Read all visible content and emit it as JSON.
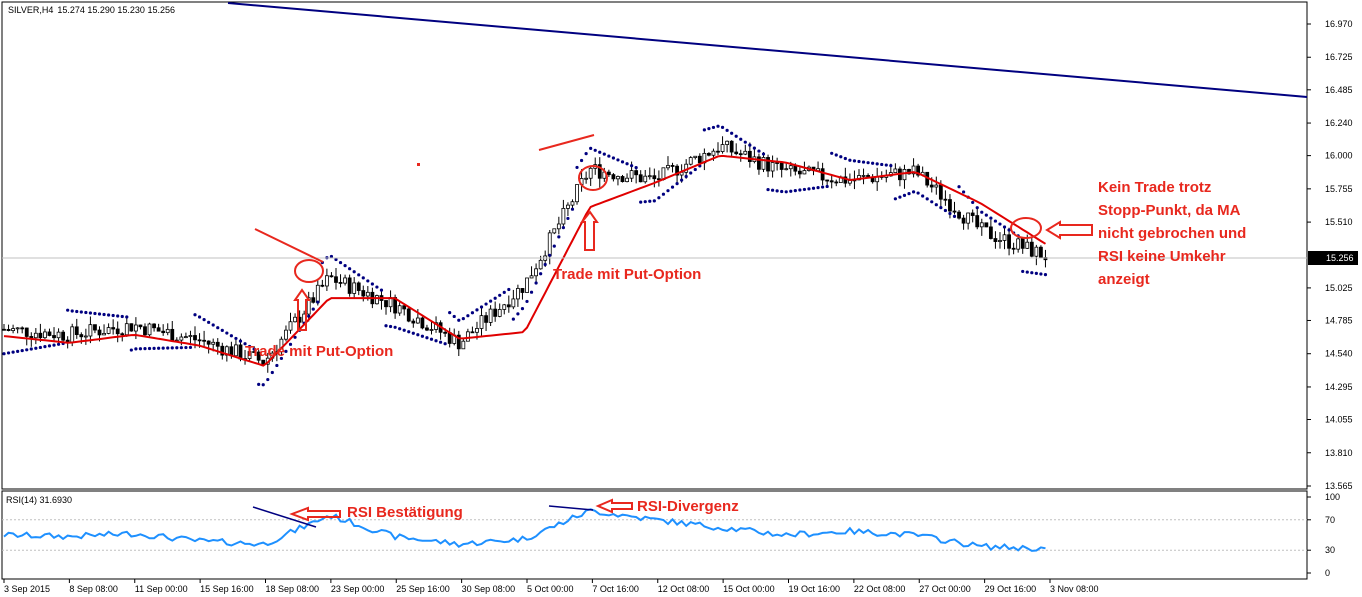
{
  "header": {
    "symbol_label": "SILVER,H4",
    "ohlc_text": "15.274 15.290 15.230 15.256",
    "rsi_label": "RSI(14) 31.6930"
  },
  "price_axis": [
    "16.970",
    "16.725",
    "16.485",
    "16.240",
    "16.000",
    "15.755",
    "15.510",
    "15.025",
    "14.785",
    "14.540",
    "14.295",
    "14.055",
    "13.810",
    "13.565"
  ],
  "current_price": "15.256",
  "rsi_axis": [
    "100",
    "70",
    "30",
    "0"
  ],
  "date_axis": [
    "3 Sep 2015",
    "8 Sep 08:00",
    "11 Sep 00:00",
    "15 Sep 16:00",
    "18 Sep 08:00",
    "23 Sep 00:00",
    "25 Sep 16:00",
    "30 Sep 08:00",
    "5 Oct 00:00",
    "7 Oct 16:00",
    "12 Oct 08:00",
    "15 Oct 00:00",
    "19 Oct 16:00",
    "22 Oct 08:00",
    "27 Oct 00:00",
    "29 Oct 16:00",
    "3 Nov 08:00"
  ],
  "annotations": {
    "put1": "Trade mit Put-Option",
    "put2": "Trade mit Put-Option",
    "rsi_confirm": "RSI Bestätigung",
    "rsi_div": "RSI-Divergenz",
    "no_trade": [
      "Kein Trade trotz",
      "Stopp-Punkt, da MA",
      "nicht gebrochen und",
      "RSI keine Umkehr",
      "anzeigt"
    ]
  },
  "colors": {
    "candle": "#000000",
    "ma": "#e00000",
    "sar": "#000080",
    "rsi": "#1e90ff",
    "trendline": "#000080",
    "annotation": "#e8281e",
    "price_box_bg": "#000000"
  },
  "chart_data": {
    "type": "line",
    "title": "SILVER,H4",
    "y_range": [
      13.565,
      16.97
    ],
    "x": [
      "3 Sep 2015",
      "8 Sep 08:00",
      "11 Sep 00:00",
      "15 Sep 16:00",
      "18 Sep 08:00",
      "23 Sep 00:00",
      "25 Sep 16:00",
      "30 Sep 08:00",
      "5 Oct 00:00",
      "7 Oct 16:00",
      "12 Oct 08:00",
      "15 Oct 00:00",
      "19 Oct 16:00",
      "22 Oct 08:00",
      "27 Oct 00:00",
      "29 Oct 16:00",
      "3 Nov 08:00"
    ],
    "series": [
      {
        "values": [
          14.72,
          14.68,
          14.75,
          14.64,
          14.48,
          15.1,
          14.9,
          14.62,
          15.05,
          15.9,
          15.82,
          16.07,
          15.88,
          15.82,
          15.88,
          15.45,
          15.26
        ]
      },
      {
        "values": [
          14.67,
          14.62,
          14.68,
          14.6,
          14.45,
          14.95,
          14.95,
          14.65,
          14.7,
          15.62,
          15.8,
          16.0,
          15.95,
          15.82,
          15.88,
          15.65,
          15.35
        ]
      }
    ],
    "rsi": {
      "y_range": [
        0,
        100
      ],
      "values": [
        50,
        48,
        52,
        42,
        38,
        76,
        48,
        38,
        45,
        82,
        70,
        60,
        50,
        55,
        50,
        35,
        32
      ],
      "levels": [
        30,
        70
      ]
    }
  }
}
